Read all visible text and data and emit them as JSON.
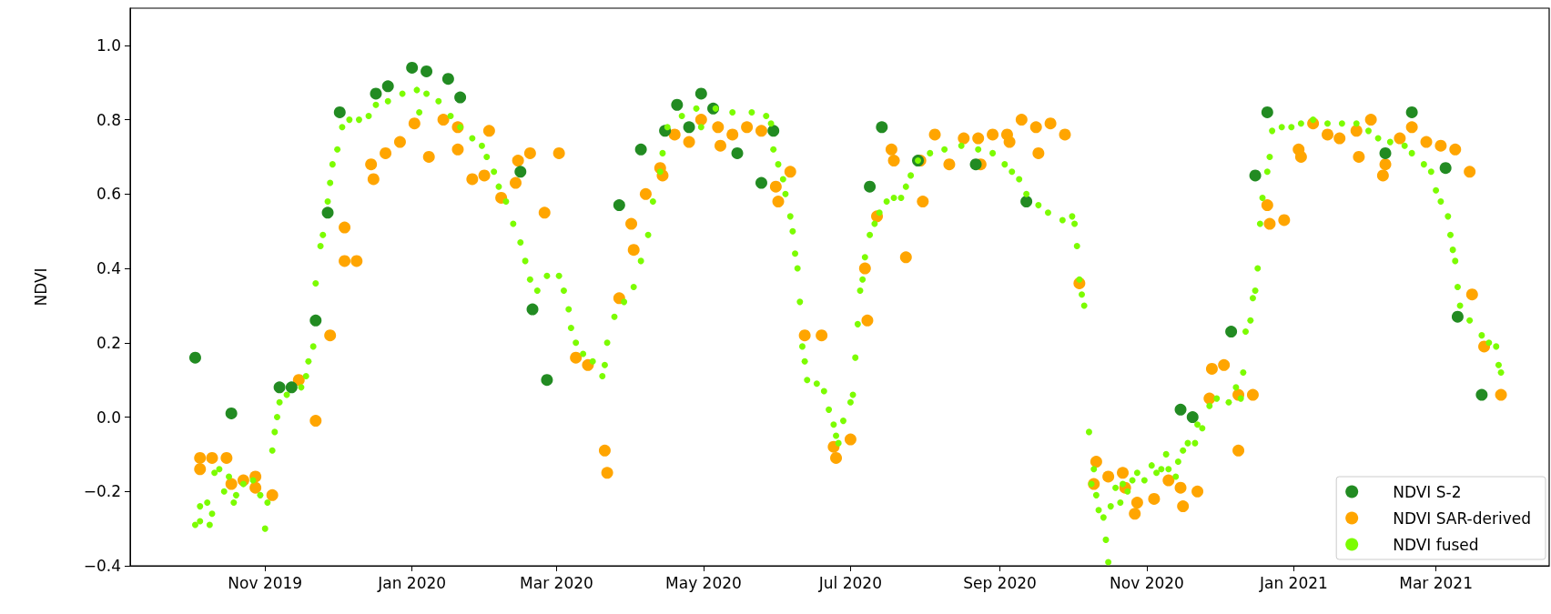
{
  "chart_data": {
    "type": "scatter",
    "ylabel": "NDVI",
    "xlim": [
      "2019-09-06",
      "2021-04-17"
    ],
    "ylim": [
      -0.4,
      1.1
    ],
    "xticks": [
      {
        "value": "2019-11",
        "label": "Nov 2019"
      },
      {
        "value": "2020-01",
        "label": "Jan 2020"
      },
      {
        "value": "2020-03",
        "label": "Mar 2020"
      },
      {
        "value": "2020-05",
        "label": "May 2020"
      },
      {
        "value": "2020-07",
        "label": "Jul 2020"
      },
      {
        "value": "2020-09",
        "label": "Sep 2020"
      },
      {
        "value": "2020-11",
        "label": "Nov 2020"
      },
      {
        "value": "2021-01",
        "label": "Jan 2021"
      },
      {
        "value": "2021-03",
        "label": "Mar 2021"
      }
    ],
    "yticks": [
      {
        "value": -0.4,
        "label": "−0.4"
      },
      {
        "value": -0.2,
        "label": "−0.2"
      },
      {
        "value": 0,
        "label": "0.0"
      },
      0.2,
      0.4,
      0.6,
      0.8,
      {
        "value": 1,
        "label": "1.0"
      }
    ],
    "legend": "bottom right",
    "marker": "circle",
    "series": [
      {
        "name": "NDVI S-2",
        "color": "#228b22",
        "x": [
          "2019-10-03",
          "2019-10-18",
          "2019-11-07",
          "2019-11-12",
          "2019-11-22",
          "2019-11-27",
          "2019-12-02",
          "2019-12-17",
          "2019-12-22",
          "2020-01-01",
          "2020-01-07",
          "2020-01-16",
          "2020-01-21",
          "2020-02-15",
          "2020-02-20",
          "2020-02-26",
          "2020-03-27",
          "2020-04-05",
          "2020-04-15",
          "2020-04-20",
          "2020-04-25",
          "2020-04-30",
          "2020-05-05",
          "2020-05-15",
          "2020-05-25",
          "2020-05-30",
          "2020-07-09",
          "2020-07-14",
          "2020-07-29",
          "2020-08-22",
          "2020-09-12",
          "2020-11-15",
          "2020-11-20",
          "2020-12-06",
          "2020-12-16",
          "2020-12-21",
          "2021-02-08",
          "2021-02-19",
          "2021-03-05",
          "2021-03-10",
          "2021-03-20"
        ],
        "values": [
          0.16,
          0.01,
          0.08,
          0.08,
          0.26,
          0.55,
          0.82,
          0.87,
          0.89,
          0.94,
          0.93,
          0.91,
          0.86,
          0.66,
          0.29,
          0.1,
          0.57,
          0.72,
          0.77,
          0.84,
          0.78,
          0.87,
          0.83,
          0.71,
          0.63,
          0.77,
          0.62,
          0.78,
          0.69,
          0.68,
          0.58,
          0.02,
          0,
          0.23,
          0.65,
          0.82,
          0.71,
          0.82,
          0.67,
          0.27,
          0.06
        ]
      },
      {
        "name": "NDVI SAR-derived",
        "color": "#ffa500",
        "x": [
          "2019-10-05",
          "2019-10-05",
          "2019-10-10",
          "2019-10-16",
          "2019-10-18",
          "2019-10-23",
          "2019-10-28",
          "2019-10-28",
          "2019-11-04",
          "2019-11-15",
          "2019-11-22",
          "2019-11-28",
          "2019-12-04",
          "2019-12-04",
          "2019-12-09",
          "2019-12-15",
          "2019-12-16",
          "2019-12-21",
          "2019-12-27",
          "2020-01-02",
          "2020-01-08",
          "2020-01-14",
          "2020-01-20",
          "2020-01-20",
          "2020-01-26",
          "2020-01-31",
          "2020-02-02",
          "2020-02-07",
          "2020-02-13",
          "2020-02-14",
          "2020-02-19",
          "2020-02-25",
          "2020-03-02",
          "2020-03-09",
          "2020-03-14",
          "2020-03-21",
          "2020-03-22",
          "2020-03-27",
          "2020-04-01",
          "2020-04-02",
          "2020-04-07",
          "2020-04-13",
          "2020-04-14",
          "2020-04-19",
          "2020-04-25",
          "2020-04-30",
          "2020-05-07",
          "2020-05-08",
          "2020-05-13",
          "2020-05-19",
          "2020-05-25",
          "2020-05-31",
          "2020-06-01",
          "2020-06-06",
          "2020-06-12",
          "2020-06-19",
          "2020-06-24",
          "2020-06-25",
          "2020-07-01",
          "2020-07-07",
          "2020-07-08",
          "2020-07-12",
          "2020-07-18",
          "2020-07-19",
          "2020-07-24",
          "2020-07-30",
          "2020-07-31",
          "2020-08-05",
          "2020-08-11",
          "2020-08-17",
          "2020-08-23",
          "2020-08-24",
          "2020-08-29",
          "2020-09-04",
          "2020-09-05",
          "2020-09-10",
          "2020-09-16",
          "2020-09-17",
          "2020-09-22",
          "2020-09-28",
          "2020-10-04",
          "2020-10-10",
          "2020-10-11",
          "2020-10-16",
          "2020-10-22",
          "2020-10-23",
          "2020-10-27",
          "2020-10-28",
          "2020-11-04",
          "2020-11-10",
          "2020-11-15",
          "2020-11-16",
          "2020-11-22",
          "2020-11-27",
          "2020-11-28",
          "2020-12-03",
          "2020-12-09",
          "2020-12-09",
          "2020-12-15",
          "2020-12-21",
          "2020-12-22",
          "2020-12-28",
          "2021-01-03",
          "2021-01-04",
          "2021-01-09",
          "2021-01-15",
          "2021-01-20",
          "2021-01-27",
          "2021-01-28",
          "2021-02-02",
          "2021-02-07",
          "2021-02-08",
          "2021-02-14",
          "2021-02-19",
          "2021-02-25",
          "2021-03-03",
          "2021-03-09",
          "2021-03-15",
          "2021-03-16",
          "2021-03-21",
          "2021-03-27",
          "2021-03-28"
        ],
        "values": [
          -0.11,
          -0.14,
          -0.11,
          -0.11,
          -0.18,
          -0.17,
          -0.16,
          -0.19,
          -0.21,
          0.1,
          -0.01,
          0.22,
          0.51,
          0.42,
          0.42,
          0.68,
          0.64,
          0.71,
          0.74,
          0.79,
          0.7,
          0.8,
          0.78,
          0.72,
          0.64,
          0.65,
          0.77,
          0.59,
          0.63,
          0.69,
          0.71,
          0.55,
          0.71,
          0.16,
          0.14,
          -0.09,
          -0.15,
          0.32,
          0.52,
          0.45,
          0.6,
          0.67,
          0.65,
          0.76,
          0.74,
          0.8,
          0.78,
          0.73,
          0.76,
          0.78,
          0.77,
          0.62,
          0.58,
          0.66,
          0.22,
          0.22,
          -0.08,
          -0.11,
          -0.06,
          0.4,
          0.26,
          0.54,
          0.72,
          0.69,
          0.43,
          0.69,
          0.58,
          0.76,
          0.68,
          0.75,
          0.75,
          0.68,
          0.76,
          0.76,
          0.74,
          0.8,
          0.78,
          0.71,
          0.79,
          0.76,
          0.36,
          -0.18,
          -0.12,
          -0.16,
          -0.15,
          -0.19,
          -0.26,
          -0.23,
          -0.22,
          -0.17,
          -0.19,
          -0.24,
          -0.2,
          0.05,
          0.13,
          0.14,
          0.06,
          -0.09,
          0.06,
          0.57,
          0.52,
          0.53,
          0.72,
          0.7,
          0.79,
          0.76,
          0.75,
          0.77,
          0.7,
          0.8,
          0.65,
          0.68,
          0.75,
          0.78,
          0.74,
          0.73,
          0.72,
          0.66,
          0.33,
          0.19,
          null,
          0.06
        ]
      },
      {
        "name": "NDVI fused",
        "color": "#7cfc00",
        "x": [
          "2019-10-03",
          "2019-10-05",
          "2019-10-05",
          "2019-10-08",
          "2019-10-09",
          "2019-10-10",
          "2019-10-11",
          "2019-10-13",
          "2019-10-15",
          "2019-10-17",
          "2019-10-19",
          "2019-10-20",
          "2019-10-23",
          "2019-10-27",
          "2019-10-30",
          "2019-11-01",
          "2019-11-02",
          "2019-11-04",
          "2019-11-05",
          "2019-11-06",
          "2019-11-07",
          "2019-11-10",
          "2019-11-16",
          "2019-11-18",
          "2019-11-19",
          "2019-11-21",
          "2019-11-22",
          "2019-11-24",
          "2019-11-25",
          "2019-11-27",
          "2019-11-28",
          "2019-11-29",
          "2019-12-01",
          "2019-12-03",
          "2019-12-06",
          "2019-12-10",
          "2019-12-14",
          "2019-12-17",
          "2019-12-22",
          "2019-12-28",
          "2020-01-03",
          "2020-01-04",
          "2020-01-07",
          "2020-01-12",
          "2020-01-17",
          "2020-01-21",
          "2020-01-26",
          "2020-01-30",
          "2020-02-01",
          "2020-02-04",
          "2020-02-06",
          "2020-02-09",
          "2020-02-12",
          "2020-02-15",
          "2020-02-17",
          "2020-02-19",
          "2020-02-22",
          "2020-02-26",
          "2020-03-02",
          "2020-03-04",
          "2020-03-06",
          "2020-03-07",
          "2020-03-09",
          "2020-03-12",
          "2020-03-16",
          "2020-03-20",
          "2020-03-21",
          "2020-03-22",
          "2020-03-25",
          "2020-03-29",
          "2020-04-02",
          "2020-04-05",
          "2020-04-08",
          "2020-04-10",
          "2020-04-13",
          "2020-04-14",
          "2020-04-16",
          "2020-04-22",
          "2020-04-28",
          "2020-04-30",
          "2020-05-06",
          "2020-05-13",
          "2020-05-21",
          "2020-05-27",
          "2020-05-29",
          "2020-05-30",
          "2020-06-01",
          "2020-06-03",
          "2020-06-04",
          "2020-06-06",
          "2020-06-07",
          "2020-06-08",
          "2020-06-09",
          "2020-06-10",
          "2020-06-11",
          "2020-06-12",
          "2020-06-13",
          "2020-06-17",
          "2020-06-20",
          "2020-06-22",
          "2020-06-24",
          "2020-06-25",
          "2020-06-26",
          "2020-06-28",
          "2020-07-01",
          "2020-07-02",
          "2020-07-03",
          "2020-07-04",
          "2020-07-05",
          "2020-07-06",
          "2020-07-07",
          "2020-07-09",
          "2020-07-11",
          "2020-07-13",
          "2020-07-16",
          "2020-07-19",
          "2020-07-22",
          "2020-07-24",
          "2020-07-26",
          "2020-07-29",
          "2020-08-03",
          "2020-08-09",
          "2020-08-16",
          "2020-08-23",
          "2020-08-29",
          "2020-09-03",
          "2020-09-06",
          "2020-09-09",
          "2020-09-12",
          "2020-09-17",
          "2020-09-21",
          "2020-09-27",
          "2020-10-01",
          "2020-10-02",
          "2020-10-03",
          "2020-10-04",
          "2020-10-05",
          "2020-10-06",
          "2020-10-08",
          "2020-10-09",
          "2020-10-10",
          "2020-10-11",
          "2020-10-12",
          "2020-10-14",
          "2020-10-15",
          "2020-10-16",
          "2020-10-17",
          "2020-10-19",
          "2020-10-21",
          "2020-10-22",
          "2020-10-24",
          "2020-10-26",
          "2020-10-28",
          "2020-10-31",
          "2020-11-03",
          "2020-11-05",
          "2020-11-07",
          "2020-11-09",
          "2020-11-10",
          "2020-11-13",
          "2020-11-14",
          "2020-11-16",
          "2020-11-18",
          "2020-11-21",
          "2020-11-22",
          "2020-11-24",
          "2020-11-27",
          "2020-11-30",
          "2020-12-05",
          "2020-12-08",
          "2020-12-10",
          "2020-12-11",
          "2020-12-12",
          "2020-12-14",
          "2020-12-15",
          "2020-12-16",
          "2020-12-17",
          "2020-12-18",
          "2020-12-19",
          "2020-12-21",
          "2020-12-22",
          "2020-12-23",
          "2020-12-27",
          "2020-12-31",
          "2021-01-04",
          "2021-01-09",
          "2021-01-15",
          "2021-01-21",
          "2021-01-27",
          "2021-02-01",
          "2021-02-05",
          "2021-02-10",
          "2021-02-16",
          "2021-02-19",
          "2021-02-24",
          "2021-02-27",
          "2021-03-01",
          "2021-03-03",
          "2021-03-06",
          "2021-03-07",
          "2021-03-08",
          "2021-03-09",
          "2021-03-10",
          "2021-03-11",
          "2021-03-15",
          "2021-03-20",
          "2021-03-23",
          "2021-03-26",
          "2021-03-27",
          "2021-03-28"
        ],
        "values": [
          -0.29,
          -0.28,
          -0.24,
          -0.23,
          -0.29,
          -0.26,
          -0.15,
          -0.14,
          -0.2,
          -0.16,
          -0.23,
          -0.21,
          -0.18,
          -0.17,
          -0.21,
          -0.3,
          -0.23,
          -0.09,
          -0.04,
          0,
          0.04,
          0.06,
          0.08,
          0.11,
          0.15,
          0.19,
          0.36,
          0.46,
          0.49,
          0.58,
          0.63,
          0.68,
          0.72,
          0.78,
          0.8,
          0.8,
          0.81,
          0.84,
          0.85,
          0.87,
          0.88,
          0.82,
          0.87,
          0.85,
          0.81,
          0.78,
          0.75,
          0.73,
          0.7,
          0.66,
          0.62,
          0.58,
          0.52,
          0.47,
          0.42,
          0.37,
          0.34,
          0.38,
          0.38,
          0.34,
          0.29,
          0.24,
          0.2,
          0.17,
          0.15,
          0.11,
          0.14,
          0.2,
          0.27,
          0.31,
          0.35,
          0.42,
          0.49,
          0.58,
          0.66,
          0.71,
          0.78,
          0.81,
          0.83,
          0.78,
          0.83,
          0.82,
          0.82,
          0.81,
          0.79,
          0.72,
          0.68,
          0.64,
          0.6,
          0.54,
          0.5,
          0.44,
          0.4,
          0.31,
          0.19,
          0.15,
          0.1,
          0.09,
          0.07,
          0.02,
          -0.02,
          -0.05,
          -0.07,
          -0.01,
          0.04,
          0.06,
          0.16,
          0.25,
          0.34,
          0.37,
          0.43,
          0.49,
          0.52,
          0.55,
          0.58,
          0.59,
          0.59,
          0.62,
          0.65,
          0.69,
          0.71,
          0.72,
          0.73,
          0.72,
          0.71,
          0.68,
          0.66,
          0.64,
          0.6,
          0.57,
          0.55,
          0.53,
          0.54,
          0.52,
          0.46,
          0.37,
          0.33,
          0.3,
          -0.04,
          -0.18,
          -0.14,
          -0.21,
          -0.25,
          -0.27,
          -0.33,
          -0.39,
          -0.24,
          -0.19,
          -0.23,
          -0.18,
          -0.2,
          -0.17,
          -0.15,
          -0.17,
          -0.13,
          -0.15,
          -0.14,
          -0.1,
          -0.14,
          -0.16,
          -0.12,
          -0.09,
          -0.07,
          -0.07,
          -0.02,
          -0.03,
          0.03,
          0.05,
          0.04,
          0.08,
          0.05,
          0.12,
          0.23,
          0.26,
          0.32,
          0.34,
          0.4,
          0.52,
          0.59,
          0.66,
          0.7,
          0.77,
          0.78,
          0.78,
          0.79,
          0.8,
          0.79,
          0.79,
          0.79,
          0.77,
          0.75,
          0.74,
          0.73,
          0.71,
          0.68,
          0.66,
          0.61,
          0.58,
          0.54,
          0.49,
          0.45,
          0.42,
          0.35,
          0.3,
          0.26,
          0.22,
          0.2,
          0.19,
          0.14,
          0.12
        ]
      }
    ]
  }
}
